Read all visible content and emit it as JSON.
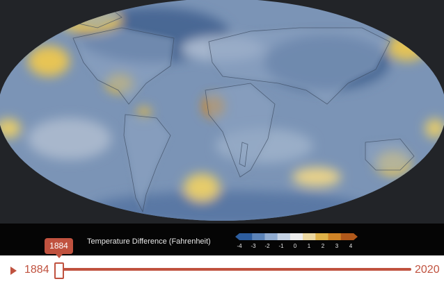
{
  "legend": {
    "title": "Temperature Difference (Fahrenheit)",
    "ticks": [
      "-4",
      "-3",
      "-2",
      "-1",
      "0",
      "1",
      "2",
      "3",
      "4"
    ],
    "colors": [
      "#2d5d9e",
      "#5b83b8",
      "#8fabd0",
      "#c4d2e4",
      "#ececec",
      "#ecd8a0",
      "#e0b248",
      "#cf8326",
      "#b0581a"
    ]
  },
  "timeline": {
    "start_year": "1884",
    "end_year": "2020",
    "current_year": "1884",
    "progress": 0
  },
  "colors": {
    "accent": "#c0523f",
    "ocean_cool": "#7d96b8",
    "warm": "#e3c152",
    "background": "#222428"
  },
  "icons": {
    "play": "play-icon"
  }
}
